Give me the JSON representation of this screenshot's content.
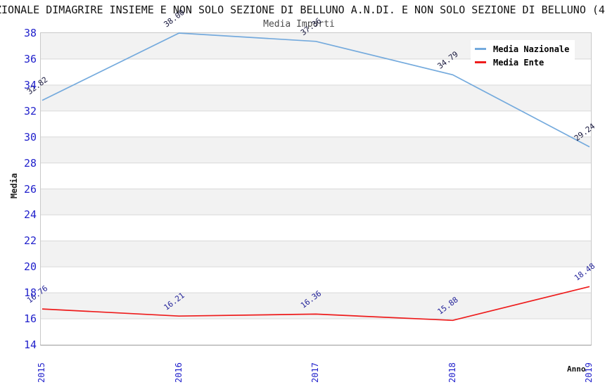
{
  "header": {
    "text": "ZIONALE DIMAGRIRE INSIEME E NON SOLO SEZIONE DI BELLUNO A.N.DI. E NON SOLO SEZIONE DI BELLUNO (4"
  },
  "chart_data": {
    "type": "line",
    "title": "Media Importi",
    "xlabel": "Anno",
    "ylabel": "Media",
    "x": [
      "2015",
      "2016",
      "2017",
      "2018",
      "2019"
    ],
    "series": [
      {
        "name": "Media Nazionale",
        "values": [
          32.82,
          38.0,
          37.36,
          34.79,
          29.24
        ],
        "color": "#74aadd",
        "label_color": "#16163c"
      },
      {
        "name": "Media Ente",
        "values": [
          16.76,
          16.21,
          16.36,
          15.88,
          18.48
        ],
        "color": "#ee1c1c",
        "label_color": "#232399"
      }
    ],
    "ylim": [
      14,
      38
    ],
    "ytick_step": 2,
    "yticks": [
      14,
      16,
      18,
      20,
      22,
      24,
      26,
      28,
      30,
      32,
      34,
      36,
      38
    ],
    "grid": "horizontal-bands",
    "legend_position": "top-right",
    "colors": {
      "tick_label": "#2222cc",
      "band_gray": "#f2f2f2",
      "band_white": "#ffffff",
      "gridline": "#d9d9d9"
    }
  }
}
